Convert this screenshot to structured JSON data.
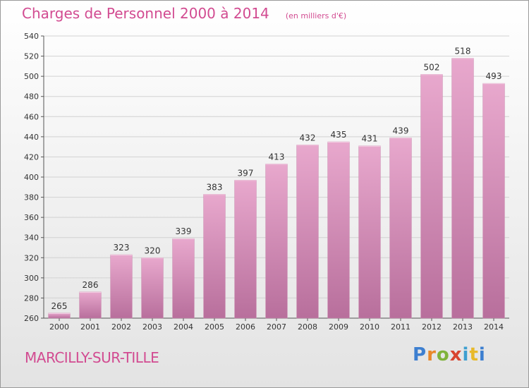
{
  "header": {
    "title": "Charges de Personnel 2000 à 2014",
    "subtitle": "(en milliers d'€)"
  },
  "footer": {
    "commune": "MARCILLY-SUR-TILLE",
    "logo_text": "Proxiti"
  },
  "colors": {
    "accent": "#d24b91",
    "bar_light": "#e8a8cd",
    "bar_dark": "#b86f9c"
  },
  "chart_data": {
    "type": "bar",
    "title": "Charges de Personnel 2000 à 2014",
    "subtitle": "(en milliers d'€)",
    "categories": [
      "2000",
      "2001",
      "2002",
      "2003",
      "2004",
      "2005",
      "2006",
      "2007",
      "2008",
      "2009",
      "2010",
      "2011",
      "2012",
      "2013",
      "2014"
    ],
    "values": [
      265,
      286,
      323,
      320,
      339,
      383,
      397,
      413,
      432,
      435,
      431,
      439,
      502,
      518,
      493
    ],
    "ylim": [
      260,
      540
    ],
    "yticks": [
      260,
      280,
      300,
      320,
      340,
      360,
      380,
      400,
      420,
      440,
      460,
      480,
      500,
      520,
      540
    ],
    "grid": true,
    "data_labels": true
  }
}
